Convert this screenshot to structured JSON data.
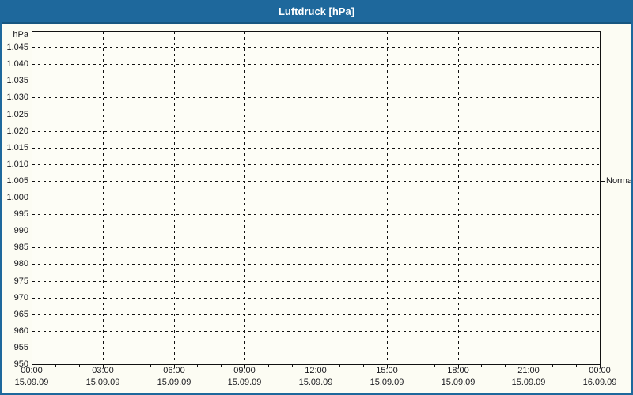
{
  "window": {
    "title": "Luftdruck [hPa]"
  },
  "chart_data": {
    "type": "line",
    "title": "Luftdruck [hPa]",
    "xlabel": "",
    "ylabel": "hPa",
    "ylim": [
      950,
      1050
    ],
    "ytick_step": 5,
    "yticks": [
      {
        "value": 1045,
        "label": "1.045"
      },
      {
        "value": 1040,
        "label": "1.040"
      },
      {
        "value": 1035,
        "label": "1.035"
      },
      {
        "value": 1030,
        "label": "1.030"
      },
      {
        "value": 1025,
        "label": "1.025"
      },
      {
        "value": 1020,
        "label": "1.020"
      },
      {
        "value": 1015,
        "label": "1.015"
      },
      {
        "value": 1010,
        "label": "1.010"
      },
      {
        "value": 1005,
        "label": "1.005"
      },
      {
        "value": 1000,
        "label": "1.000"
      },
      {
        "value": 995,
        "label": "995"
      },
      {
        "value": 990,
        "label": "990"
      },
      {
        "value": 985,
        "label": "985"
      },
      {
        "value": 980,
        "label": "980"
      },
      {
        "value": 975,
        "label": "975"
      },
      {
        "value": 970,
        "label": "970"
      },
      {
        "value": 965,
        "label": "965"
      },
      {
        "value": 960,
        "label": "960"
      },
      {
        "value": 955,
        "label": "955"
      },
      {
        "value": 950,
        "label": "950"
      }
    ],
    "xlim_hours": [
      0,
      24
    ],
    "xticks": [
      {
        "hour": 0,
        "time": "00:00",
        "date": "15.09.09"
      },
      {
        "hour": 3,
        "time": "03:00",
        "date": "15.09.09"
      },
      {
        "hour": 6,
        "time": "06:00",
        "date": "15.09.09"
      },
      {
        "hour": 9,
        "time": "09:00",
        "date": "15.09.09"
      },
      {
        "hour": 12,
        "time": "12:00",
        "date": "15.09.09"
      },
      {
        "hour": 15,
        "time": "15:00",
        "date": "15.09.09"
      },
      {
        "hour": 18,
        "time": "18:00",
        "date": "15.09.09"
      },
      {
        "hour": 21,
        "time": "21:00",
        "date": "15.09.09"
      },
      {
        "hour": 24,
        "time": "00:00",
        "date": "16.09.09"
      }
    ],
    "minor_xtick_interval_hours": 1,
    "grid": {
      "style": "dashed",
      "color": "#111111",
      "on": true
    },
    "series": [],
    "annotations": [
      {
        "label": "Normal",
        "value": 1005,
        "side": "right"
      }
    ],
    "legend": "none",
    "colors": {
      "titlebar": "#1e689c",
      "window_border": "#1e689c",
      "title_text": "#ffffff",
      "plot_background": "#fdfdf6",
      "frame": "#111111",
      "text": "#17171c"
    }
  }
}
